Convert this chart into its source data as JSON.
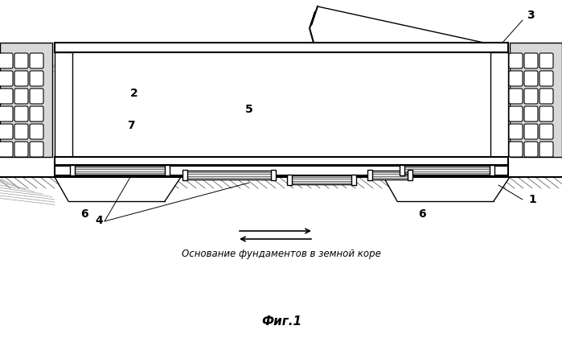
{
  "title": "Фиг.1",
  "subtitle": "Основание фундаментов в земной коре",
  "bg_color": "#ffffff",
  "fig_width": 6.99,
  "fig_height": 4.2,
  "dpi": 100
}
